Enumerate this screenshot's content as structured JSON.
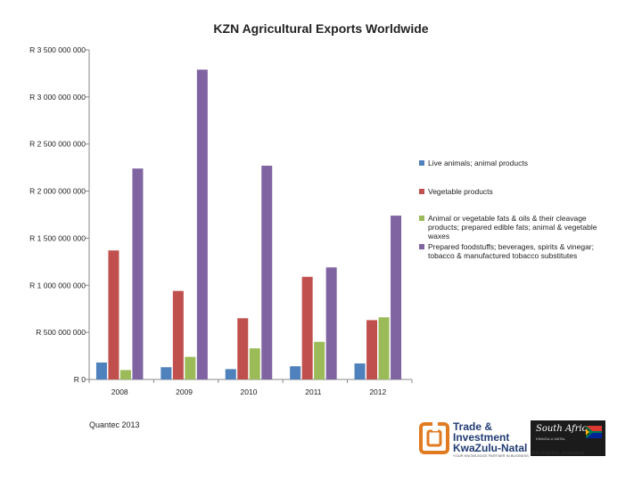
{
  "chart_data": {
    "type": "bar",
    "title": "KZN Agricultural Exports Worldwide",
    "categories": [
      "2008",
      "2009",
      "2010",
      "2011",
      "2012"
    ],
    "y_ticks": [
      "R 0",
      "R 500 000 000",
      "R 1 000 000 000",
      "R 1 500 000 000",
      "R 2 000 000 000",
      "R 2 500 000 000",
      "R 3 000 000 000",
      "R 3 500 000 000"
    ],
    "ylim": [
      0,
      3500000000
    ],
    "grid": false,
    "legend_position": "right",
    "series": [
      {
        "name": "Live animals; animal products",
        "color": "#4f81bd",
        "values": [
          180000000,
          130000000,
          110000000,
          140000000,
          170000000
        ]
      },
      {
        "name": "Vegetable products",
        "color": "#c0504d",
        "values": [
          1370000000,
          940000000,
          650000000,
          1090000000,
          630000000
        ]
      },
      {
        "name": "Animal or vegetable fats & oils & their cleavage products; prepared edible fats; animal & vegetable waxes",
        "color": "#9bbb59",
        "values": [
          100000000,
          240000000,
          330000000,
          400000000,
          660000000
        ]
      },
      {
        "name": "Prepared foodstuffs; beverages, spirits & vinegar; tobacco & manufactured tobacco substitutes",
        "color": "#8064a2",
        "values": [
          2240000000,
          3290000000,
          2270000000,
          1190000000,
          1740000000
        ]
      }
    ]
  },
  "source": "Quantec 2013",
  "logo": {
    "line1": "Trade &",
    "line2": "Investment",
    "line3": "KwaZulu-Natal",
    "tagline": "YOUR KNOWLEDGE PARTNER IN BUSINESS",
    "sa_word": "South Africa",
    "sa_sub": "KWAZULU-NATAL",
    "sa_tag": "Zulu Kingdom. exceptional"
  }
}
